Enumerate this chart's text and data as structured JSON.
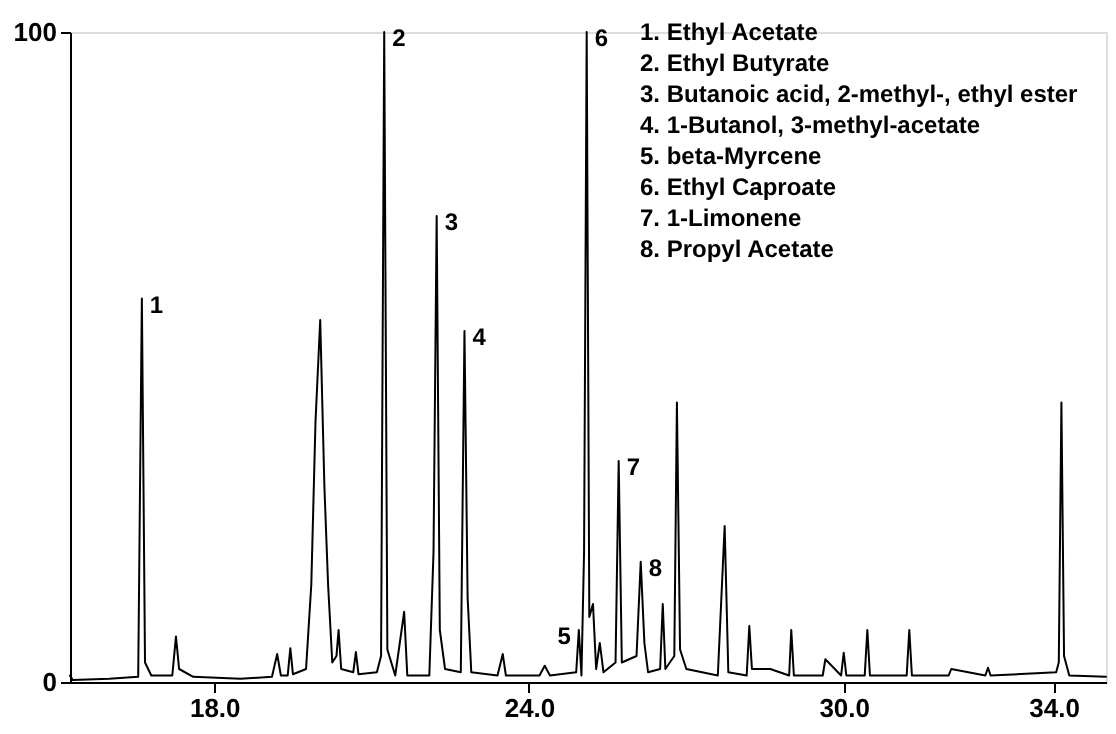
{
  "chart_data": {
    "type": "line",
    "x": [
      15.25,
      15.3,
      16.0,
      16.55,
      16.62,
      16.68,
      16.8,
      17.2,
      17.27,
      17.33,
      17.6,
      18.5,
      19.1,
      19.2,
      19.27,
      19.4,
      19.45,
      19.5,
      19.75,
      19.85,
      19.93,
      20.02,
      20.1,
      20.17,
      20.25,
      20.33,
      20.37,
      20.42,
      20.65,
      20.7,
      20.75,
      21.1,
      21.18,
      21.24,
      21.3,
      21.45,
      21.62,
      21.68,
      22.1,
      22.18,
      22.24,
      22.3,
      22.4,
      22.7,
      22.77,
      22.83,
      22.9,
      23.4,
      23.5,
      23.56,
      24.2,
      24.3,
      24.4,
      24.9,
      24.95,
      25.0,
      25.05,
      25.1,
      25.15,
      25.22,
      25.28,
      25.35,
      25.42,
      25.65,
      25.71,
      25.77,
      26.05,
      26.13,
      26.2,
      26.27,
      26.5,
      26.55,
      26.6,
      26.77,
      26.82,
      26.88,
      27.0,
      27.6,
      27.73,
      27.8,
      28.15,
      28.2,
      28.25,
      28.6,
      28.96,
      29.0,
      29.05,
      29.6,
      29.65,
      29.95,
      30.0,
      30.05,
      30.4,
      30.45,
      30.5,
      31.2,
      31.25,
      31.3,
      32.0,
      32.05,
      32.7,
      32.75,
      32.8,
      34.05,
      34.1,
      34.15,
      34.2,
      34.3,
      35.0
    ],
    "series": [
      {
        "color": "#000000",
        "values": [
          1,
          0.3,
          0.5,
          0.8,
          59,
          3,
          1,
          1,
          7,
          2,
          0.8,
          0.5,
          0.8,
          4.3,
          1,
          1,
          5.2,
          1.2,
          2,
          15,
          40,
          55.7,
          30,
          15,
          3,
          4,
          8,
          2,
          1.5,
          4.6,
          1.2,
          1.5,
          4,
          100,
          5,
          1,
          10.8,
          1,
          1,
          20,
          71.7,
          8,
          2,
          1.5,
          54,
          13,
          1.5,
          1,
          4.3,
          1,
          1,
          2.5,
          1,
          1.5,
          8,
          1,
          20,
          100,
          10,
          12,
          2,
          6,
          1.5,
          3,
          34,
          3,
          4,
          18.5,
          6,
          1.5,
          2,
          12,
          2,
          4,
          43,
          5,
          2,
          1,
          24,
          1.5,
          1,
          8.6,
          2,
          2,
          1,
          8,
          1,
          1,
          3.5,
          1,
          4.5,
          1,
          1,
          8,
          1,
          1,
          8,
          1,
          1,
          2,
          1,
          2.2,
          1,
          1.5,
          3,
          43,
          4,
          1,
          0.8
        ]
      }
    ],
    "xlim": [
      15.25,
      35.0
    ],
    "xticks": [
      {
        "value": 18,
        "label": "18.0"
      },
      {
        "value": 24,
        "label": "24.0"
      },
      {
        "value": 30,
        "label": "30.0"
      },
      {
        "value": 34,
        "label": "34.0"
      }
    ],
    "ylim": [
      0,
      100
    ],
    "yticks": [
      0,
      100
    ],
    "grid": false,
    "marker": "none",
    "line_style": "solid",
    "annotations": [
      {
        "text": "1",
        "x": 16.62,
        "y": 59
      },
      {
        "text": "2",
        "x": 21.24,
        "y": 100
      },
      {
        "text": "3",
        "x": 22.24,
        "y": 71.7
      },
      {
        "text": "4",
        "x": 22.77,
        "y": 54
      },
      {
        "text": "5",
        "x": 24.95,
        "y": 8
      },
      {
        "text": "6",
        "x": 25.1,
        "y": 100
      },
      {
        "text": "7",
        "x": 25.71,
        "y": 34
      },
      {
        "text": "8",
        "x": 26.13,
        "y": 18.5
      },
      "1.  Ethyl Acetate",
      "2.  Ethyl Butyrate",
      "3.  Butanoic acid, 2-methyl-, ethyl ester",
      "4.  1-Butanol, 3-methyl-acetate",
      "5.  beta-Myrcene",
      "6.  Ethyl Caproate",
      "7.  1-Limonene",
      "8.  Propyl Acetate"
    ]
  }
}
